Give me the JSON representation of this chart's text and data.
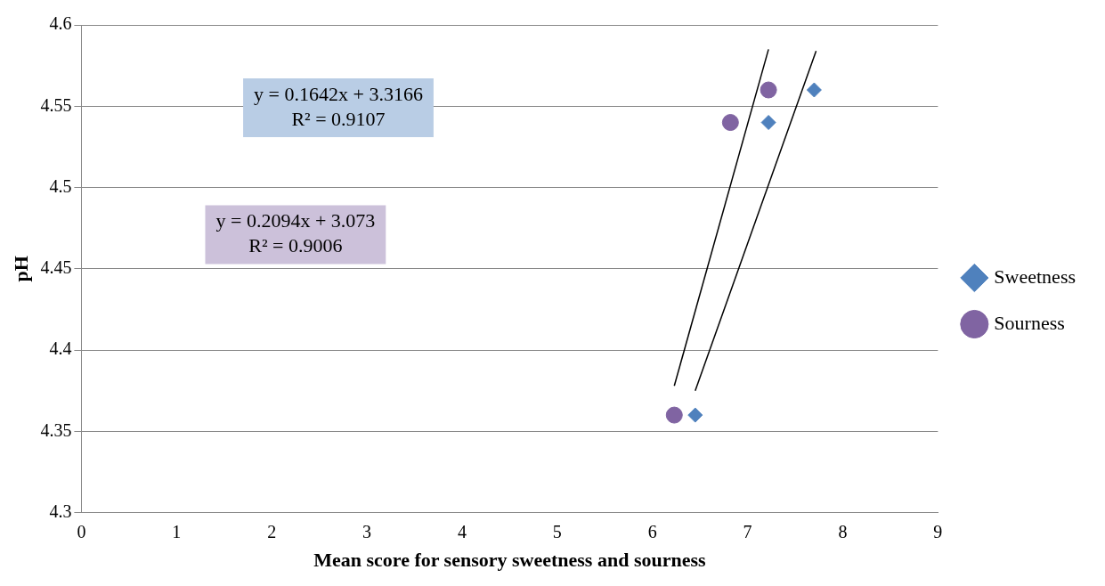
{
  "chart_data": {
    "type": "scatter",
    "xlabel": "Mean score for sensory sweetness and sourness",
    "ylabel": "pH",
    "xlim": [
      0,
      9
    ],
    "xticks": [
      0,
      1,
      2,
      3,
      4,
      5,
      6,
      7,
      8,
      9
    ],
    "ylim": [
      4.3,
      4.6
    ],
    "yticks": [
      4.3,
      4.35,
      4.4,
      4.45,
      4.5,
      4.55,
      4.6
    ],
    "grid": "y",
    "legend": "right",
    "annotations": [
      "y = 0.1642x + 3.3166\nR² = 0.9107",
      "y = 0.2094x + 3.073\nR² = 0.9006"
    ],
    "series": [
      {
        "name": "Sweetness",
        "color": "#4f81bd",
        "marker": "diamond",
        "x": [
          6.45,
          7.22,
          7.7
        ],
        "values": [
          4.36,
          4.54,
          4.56
        ]
      },
      {
        "name": "Sourness",
        "color": "#8064a2",
        "marker": "circle",
        "x": [
          6.23,
          6.82,
          7.22
        ],
        "values": [
          4.36,
          4.54,
          4.56
        ]
      },
      {
        "type": "line",
        "color": "#000000",
        "marker": "none",
        "x": [
          6.45,
          7.72
        ],
        "values": [
          4.375,
          4.584
        ]
      },
      {
        "type": "line",
        "color": "#000000",
        "marker": "none",
        "x": [
          6.23,
          7.22
        ],
        "values": [
          4.378,
          4.585
        ]
      }
    ]
  }
}
